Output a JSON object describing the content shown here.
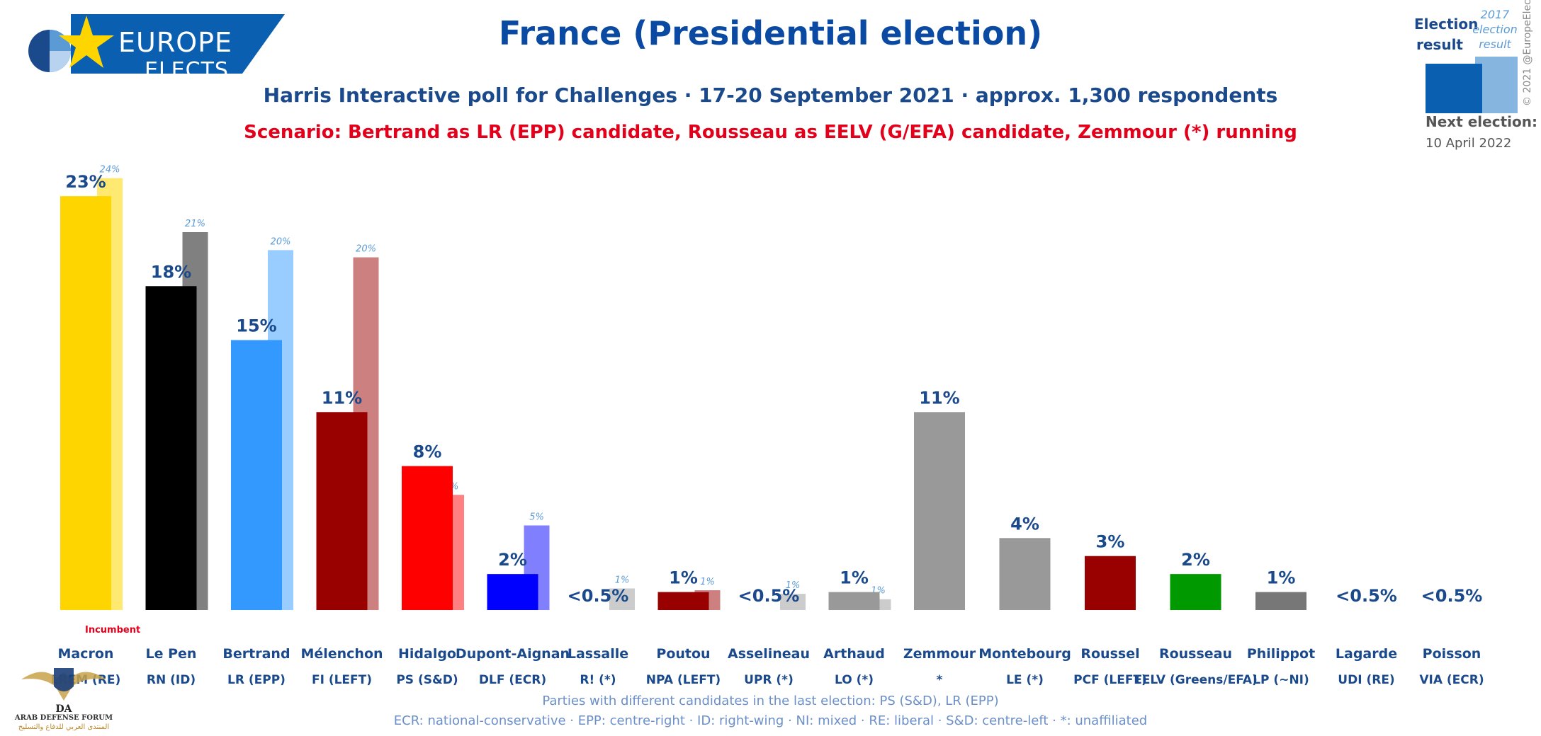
{
  "logo": {
    "line1": "EUROPE",
    "line2": "ELECTS"
  },
  "title": "France (Presidential election)",
  "subtitle": "Harris Interactive poll for Challenges · 17-20 September 2021 · approx. 1,300 respondents",
  "scenario": "Scenario: Bertrand as LR (EPP) candidate, Rousseau as EELV (G/EFA) candidate, Zemmour (*) running",
  "legend": {
    "election_result": "Election result",
    "prev_result": "2017 election result"
  },
  "copyright": "© 2021 @EuropeElects",
  "next_election": {
    "label": "Next election:",
    "date": "10 April 2022"
  },
  "incumbent_label": "Incumbent",
  "notes": {
    "line1": "Parties with different candidates in the last election: PS (S&D), LR (EPP)",
    "line2": "ECR: national-conservative · EPP: centre-right · ID: right-wing · NI: mixed · RE: liberal · S&D: centre-left · *: unaffiliated"
  },
  "watermark": {
    "line1": "ARAB DEFENSE FORUM",
    "line2": "المنتدى العربي للدفاع والتسليح"
  },
  "colors": {
    "title": "#0b4aa2",
    "scenario": "#e3001b",
    "label": "#1b4a8c",
    "note": "#6b8fc8"
  },
  "chart_data": {
    "type": "bar",
    "ylim": [
      0,
      24.5
    ],
    "categories": [
      {
        "name": "Macron",
        "party": "LREM (RE)",
        "value": 23,
        "label": "23%",
        "prev": 24,
        "prev_label": "24%",
        "color": "#ffd500",
        "prev_color": "#ffe970"
      },
      {
        "name": "Le Pen",
        "party": "RN (ID)",
        "value": 18,
        "label": "18%",
        "prev": 21,
        "prev_label": "21%",
        "color": "#000000",
        "prev_color": "#808080"
      },
      {
        "name": "Bertrand",
        "party": "LR (EPP)",
        "value": 15,
        "label": "15%",
        "prev": 20,
        "prev_label": "20%",
        "color": "#3399ff",
        "prev_color": "#99ccff"
      },
      {
        "name": "Mélenchon",
        "party": "FI (LEFT)",
        "value": 11,
        "label": "11%",
        "prev": 19.6,
        "prev_label": "20%",
        "color": "#990000",
        "prev_color": "#cc8080"
      },
      {
        "name": "Hidalgo",
        "party": "PS (S&D)",
        "value": 8,
        "label": "8%",
        "prev": 6.4,
        "prev_label": "6%",
        "color": "#ff0000",
        "prev_color": "#ff8080"
      },
      {
        "name": "Dupont-Aignan",
        "party": "DLF (ECR)",
        "value": 2,
        "label": "2%",
        "prev": 4.7,
        "prev_label": "5%",
        "color": "#0000ff",
        "prev_color": "#8080ff"
      },
      {
        "name": "Lassalle",
        "party": "R! (*)",
        "value": 0,
        "label": "<0.5%",
        "prev": 1.2,
        "prev_label": "1%",
        "color": "#999999",
        "prev_color": "#cccccc"
      },
      {
        "name": "Poutou",
        "party": "NPA (LEFT)",
        "value": 1,
        "label": "1%",
        "prev": 1.1,
        "prev_label": "1%",
        "color": "#990000",
        "prev_color": "#cc8080"
      },
      {
        "name": "Asselineau",
        "party": "UPR (*)",
        "value": 0,
        "label": "<0.5%",
        "prev": 0.9,
        "prev_label": "1%",
        "color": "#999999",
        "prev_color": "#cccccc"
      },
      {
        "name": "Arthaud",
        "party": "LO (*)",
        "value": 1,
        "label": "1%",
        "prev": 0.6,
        "prev_label": "1%",
        "color": "#999999",
        "prev_color": "#cccccc"
      },
      {
        "name": "Zemmour",
        "party": "*",
        "value": 11,
        "label": "11%",
        "prev": null,
        "prev_label": "",
        "color": "#999999",
        "prev_color": "#cccccc"
      },
      {
        "name": "Montebourg",
        "party": "LE (*)",
        "value": 4,
        "label": "4%",
        "prev": null,
        "prev_label": "",
        "color": "#999999",
        "prev_color": "#cccccc"
      },
      {
        "name": "Roussel",
        "party": "PCF (LEFT)",
        "value": 3,
        "label": "3%",
        "prev": null,
        "prev_label": "",
        "color": "#990000",
        "prev_color": "#cc8080"
      },
      {
        "name": "Rousseau",
        "party": "EELV (Greens/EFA)",
        "value": 2,
        "label": "2%",
        "prev": null,
        "prev_label": "",
        "color": "#009900",
        "prev_color": "#80cc80"
      },
      {
        "name": "Philippot",
        "party": "LP (~NI)",
        "value": 1,
        "label": "1%",
        "prev": null,
        "prev_label": "",
        "color": "#777777",
        "prev_color": "#bbbbbb"
      },
      {
        "name": "Lagarde",
        "party": "UDI (RE)",
        "value": 0,
        "label": "<0.5%",
        "prev": null,
        "prev_label": "",
        "color": "#999999",
        "prev_color": "#cccccc"
      },
      {
        "name": "Poisson",
        "party": "VIA (ECR)",
        "value": 0,
        "label": "<0.5%",
        "prev": null,
        "prev_label": "",
        "color": "#999999",
        "prev_color": "#cccccc"
      }
    ]
  }
}
